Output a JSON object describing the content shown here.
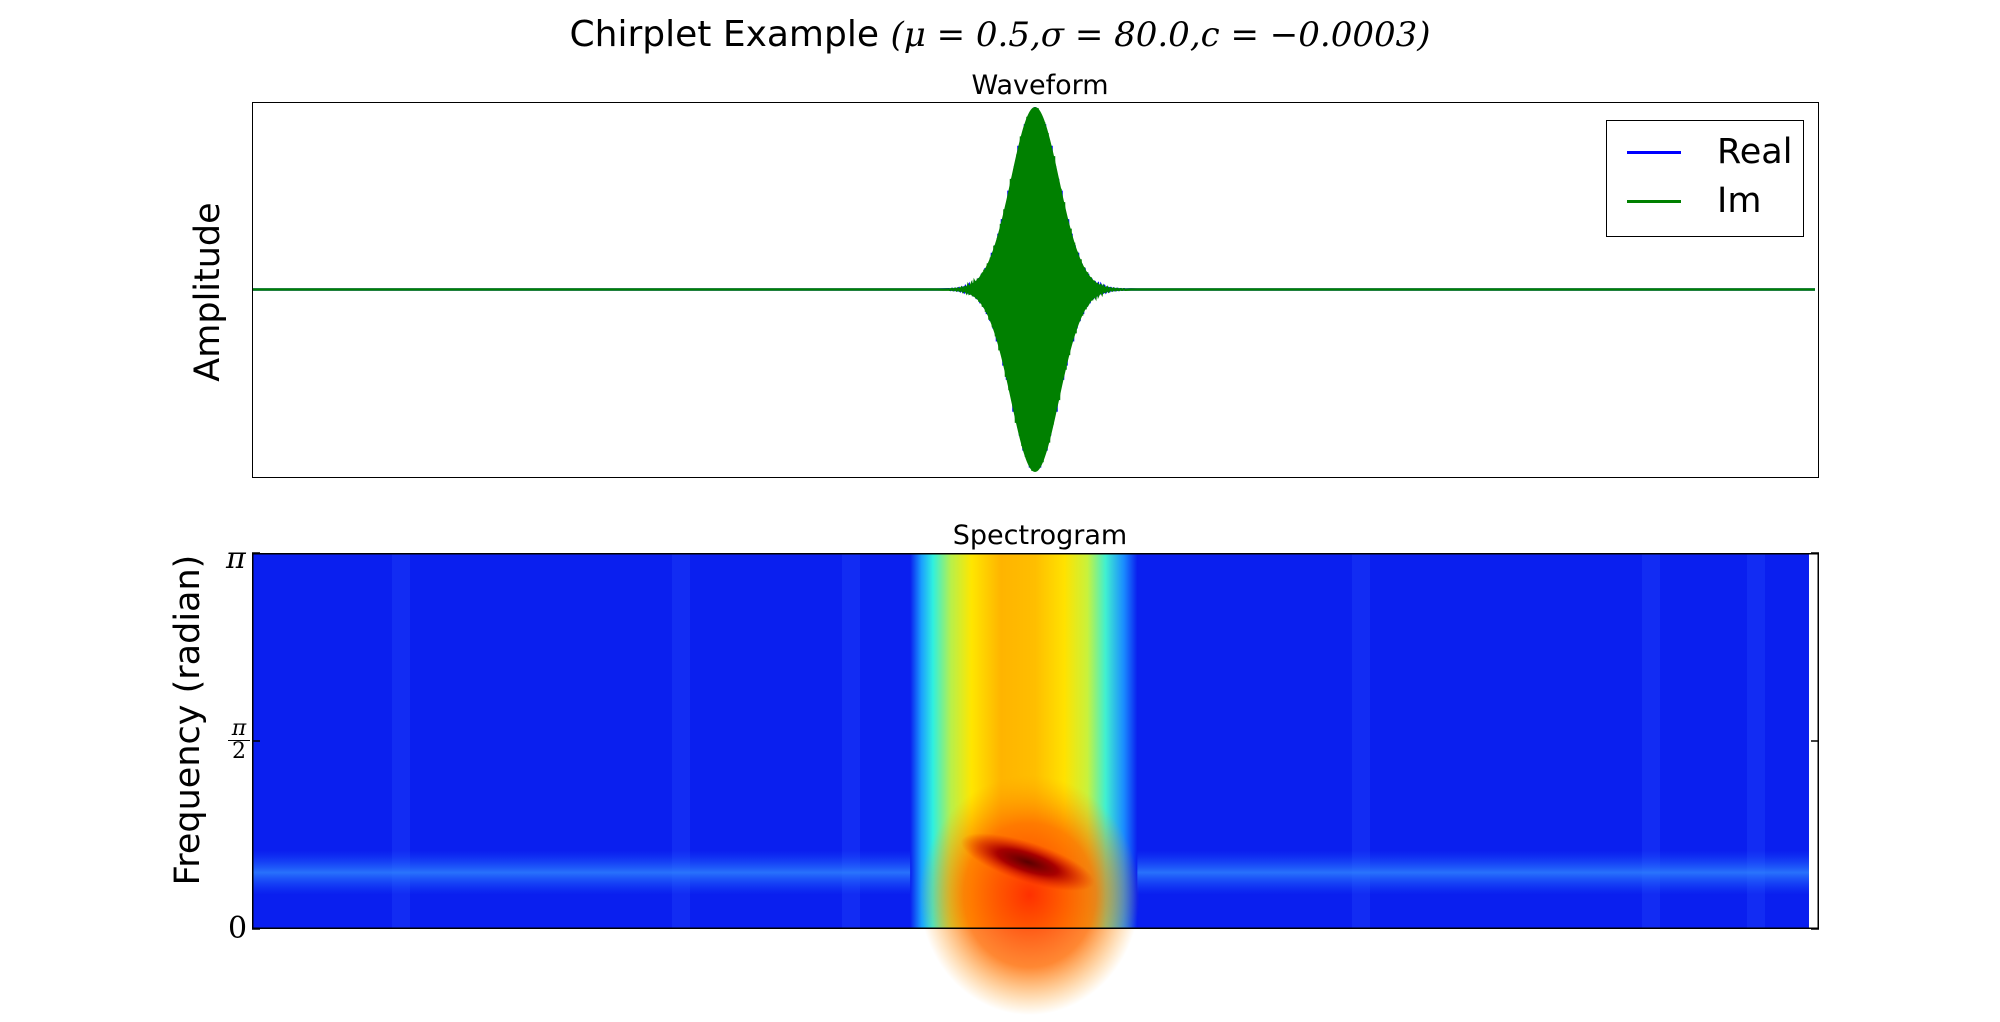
{
  "figure": {
    "suptitle_text": "Chirplet Example",
    "suptitle_math": "(μ = 0.5,σ = 80.0,c = −0.0003)"
  },
  "chart_data": [
    {
      "type": "line",
      "title": "Waveform",
      "xlabel": "",
      "ylabel": "Amplitude",
      "xticks": [],
      "yticks": [],
      "legend_position": "top-right",
      "envelope": {
        "shape": "gaussian",
        "center_fraction": 0.5,
        "peak_amplitude": 1.0
      },
      "series": [
        {
          "name": "Real",
          "color": "#0000ff"
        },
        {
          "name": "Im",
          "color": "#008000"
        }
      ]
    },
    {
      "type": "heatmap",
      "title": "Spectrogram",
      "xlabel": "",
      "ylabel": "Frequency (radian)",
      "colormap": "jet",
      "yticks": [
        {
          "value": 0,
          "label": "0"
        },
        {
          "value": 1.5708,
          "label": "π/2"
        },
        {
          "value": 3.1416,
          "label": "π"
        }
      ],
      "ylim": [
        0,
        3.1416
      ],
      "high_energy_band": {
        "x_start_fraction": 0.42,
        "x_end_fraction": 0.565
      },
      "peak": {
        "x_fraction": 0.495,
        "frequency_fraction": 0.17,
        "slope": "descending"
      },
      "background_band_frequency_fraction": 0.15
    }
  ]
}
